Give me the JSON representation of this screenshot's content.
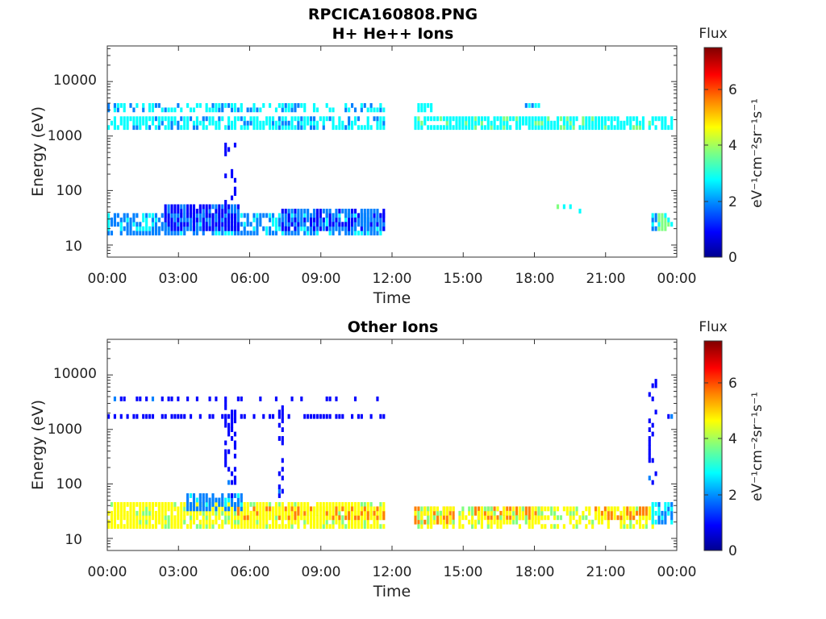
{
  "figure": {
    "title": "RPCICA160808.PNG"
  },
  "colorbar": {
    "title": "Flux",
    "label": "eV⁻¹cm⁻²sr⁻¹s⁻¹",
    "range": [
      0,
      7.5
    ],
    "ticks": [
      "0",
      "2",
      "4",
      "6"
    ],
    "colormap": "jet",
    "colors": [
      "#00008f",
      "#0000ff",
      "#0080ff",
      "#00ffff",
      "#80ff80",
      "#ffff00",
      "#ff8000",
      "#ff0000",
      "#800000"
    ]
  },
  "x_axis": {
    "label": "Time",
    "ticks": [
      "00:00",
      "03:00",
      "06:00",
      "09:00",
      "12:00",
      "15:00",
      "18:00",
      "21:00",
      "00:00"
    ],
    "range_hours": [
      0,
      24
    ]
  },
  "y_axis": {
    "label": "Energy (eV)",
    "scale": "log",
    "range": [
      6,
      45000
    ],
    "ticks": [
      "10",
      "100",
      "1000",
      "10000"
    ]
  },
  "chart_data": [
    {
      "type": "heatmap",
      "title": "H+ He++ Ions",
      "xlabel": "Time",
      "ylabel": "Energy (eV)",
      "yscale": "log",
      "gaps_hours": [
        [
          11.75,
          12.95
        ]
      ],
      "bands": [
        {
          "t": [
            0.0,
            11.75
          ],
          "e": [
            15,
            38
          ],
          "flux": 2.2,
          "density": 0.75
        },
        {
          "t": [
            2.4,
            5.6
          ],
          "e": [
            18,
            55
          ],
          "flux": 1.3,
          "density": 0.95
        },
        {
          "t": [
            4.9,
            5.5
          ],
          "e": [
            40,
            900
          ],
          "flux": 1.0,
          "density": 0.25
        },
        {
          "t": [
            7.3,
            11.75
          ],
          "e": [
            18,
            50
          ],
          "flux": 1.5,
          "density": 0.8
        },
        {
          "t": [
            0.0,
            11.75
          ],
          "e": [
            1250,
            2100
          ],
          "flux": 2.6,
          "density": 0.75
        },
        {
          "t": [
            0.0,
            11.75
          ],
          "e": [
            2900,
            4000
          ],
          "flux": 2.4,
          "density": 0.55
        },
        {
          "t": [
            12.95,
            23.9
          ],
          "e": [
            1300,
            2200
          ],
          "flux": 2.9,
          "density": 0.85
        },
        {
          "t": [
            12.95,
            13.7
          ],
          "e": [
            3000,
            3900
          ],
          "flux": 2.6,
          "density": 0.7
        },
        {
          "t": [
            17.6,
            18.2
          ],
          "e": [
            3100,
            3800
          ],
          "flux": 2.3,
          "density": 0.8
        },
        {
          "t": [
            23.0,
            23.2
          ],
          "e": [
            18,
            40
          ],
          "flux": 2.0,
          "density": 0.8
        },
        {
          "t": [
            23.2,
            23.9
          ],
          "e": [
            20,
            40
          ],
          "flux": 3.5,
          "density": 0.6
        },
        {
          "t": [
            19.0,
            20.0
          ],
          "e": [
            40,
            55
          ],
          "flux": 3.0,
          "density": 0.2
        }
      ]
    },
    {
      "type": "heatmap",
      "title": "Other Ions",
      "xlabel": "Time",
      "ylabel": "Energy (eV)",
      "yscale": "log",
      "gaps_hours": [
        [
          11.75,
          12.95
        ]
      ],
      "bands": [
        {
          "t": [
            0.0,
            11.75
          ],
          "e": [
            15,
            45
          ],
          "flux": 4.5,
          "density": 0.9
        },
        {
          "t": [
            5.5,
            11.75
          ],
          "e": [
            22,
            40
          ],
          "flux": 5.0,
          "density": 0.85
        },
        {
          "t": [
            3.3,
            5.7
          ],
          "e": [
            35,
            65
          ],
          "flux": 2.0,
          "density": 0.8
        },
        {
          "t": [
            4.9,
            5.5
          ],
          "e": [
            60,
            3500
          ],
          "flux": 1.0,
          "density": 0.35
        },
        {
          "t": [
            7.2,
            7.5
          ],
          "e": [
            60,
            3500
          ],
          "flux": 1.0,
          "density": 0.35
        },
        {
          "t": [
            0.0,
            11.75
          ],
          "e": [
            1500,
            2000
          ],
          "flux": 1.0,
          "density": 0.5
        },
        {
          "t": [
            0.0,
            11.75
          ],
          "e": [
            3200,
            4200
          ],
          "flux": 1.0,
          "density": 0.35
        },
        {
          "t": [
            12.95,
            14.6
          ],
          "e": [
            18,
            40
          ],
          "flux": 5.6,
          "density": 0.9
        },
        {
          "t": [
            15.4,
            18.4
          ],
          "e": [
            22,
            38
          ],
          "flux": 5.4,
          "density": 0.9
        },
        {
          "t": [
            12.95,
            23.0
          ],
          "e": [
            15,
            40
          ],
          "flux": 4.4,
          "density": 0.6
        },
        {
          "t": [
            20.5,
            23.0
          ],
          "e": [
            22,
            38
          ],
          "flux": 5.1,
          "density": 0.9
        },
        {
          "t": [
            23.0,
            23.9
          ],
          "e": [
            20,
            45
          ],
          "flux": 2.5,
          "density": 0.7
        },
        {
          "t": [
            22.8,
            23.2
          ],
          "e": [
            100,
            9000
          ],
          "flux": 1.0,
          "density": 0.3
        },
        {
          "t": [
            23.6,
            23.9
          ],
          "e": [
            1500,
            1900
          ],
          "flux": 1.2,
          "density": 0.6
        }
      ]
    }
  ]
}
